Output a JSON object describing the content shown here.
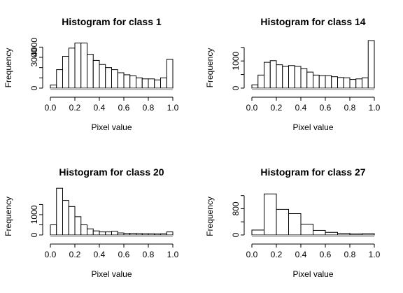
{
  "chart_data": [
    {
      "type": "bar",
      "title": "Histogram for class 1",
      "xlabel": "Pixel value",
      "ylabel": "Frequency",
      "xlim": [
        0,
        1
      ],
      "ylim": [
        0,
        4500
      ],
      "xticks": [
        "0.0",
        "0.2",
        "0.4",
        "0.6",
        "0.8",
        "1.0"
      ],
      "yticks": [
        "0",
        "1000",
        "2000",
        "3000",
        "4000"
      ],
      "ytick_labels_shown": [
        "0",
        "3000",
        "4000"
      ],
      "bin_width": 0.05,
      "values": [
        300,
        1800,
        3100,
        3900,
        4400,
        4400,
        3300,
        2700,
        2300,
        2000,
        1800,
        1500,
        1300,
        1200,
        1000,
        900,
        900,
        800,
        1000,
        2800
      ]
    },
    {
      "type": "bar",
      "title": "Histogram for class 14",
      "xlabel": "Pixel value",
      "ylabel": "Frequency",
      "xlim": [
        0,
        1
      ],
      "ylim": [
        0,
        1700
      ],
      "xticks": [
        "0.0",
        "0.2",
        "0.4",
        "0.6",
        "0.8",
        "1.0"
      ],
      "yticks": [
        "0",
        "500",
        "1000",
        "1500"
      ],
      "ytick_labels_shown": [
        "0",
        "1000"
      ],
      "bin_width": 0.05,
      "values": [
        120,
        480,
        950,
        1010,
        860,
        800,
        830,
        800,
        720,
        590,
        480,
        460,
        460,
        420,
        390,
        380,
        320,
        340,
        380,
        1750
      ]
    },
    {
      "type": "bar",
      "title": "Histogram for class 20",
      "xlabel": "Pixel value",
      "ylabel": "Frequency",
      "xlim": [
        0,
        1
      ],
      "ylim": [
        0,
        2100
      ],
      "xticks": [
        "0.0",
        "0.2",
        "0.4",
        "0.6",
        "0.8",
        "1.0"
      ],
      "yticks": [
        "0",
        "500",
        "1000",
        "1500"
      ],
      "ytick_labels_shown": [
        "0",
        "1000"
      ],
      "bin_width": 0.05,
      "values": [
        500,
        2300,
        1700,
        1400,
        900,
        500,
        300,
        200,
        150,
        150,
        180,
        100,
        80,
        80,
        70,
        60,
        60,
        50,
        60,
        150
      ]
    },
    {
      "type": "bar",
      "title": "Histogram for class 27",
      "xlabel": "Pixel value",
      "ylabel": "Frequency",
      "xlim": [
        0,
        1
      ],
      "ylim": [
        0,
        1300
      ],
      "xticks": [
        "0.0",
        "0.2",
        "0.4",
        "0.6",
        "0.8",
        "1.0"
      ],
      "yticks": [
        "0",
        "400",
        "800",
        "1200"
      ],
      "ytick_labels_shown": [
        "0",
        "800"
      ],
      "bin_width": 0.1,
      "values": [
        150,
        1250,
        780,
        650,
        330,
        140,
        80,
        50,
        30,
        40
      ]
    }
  ]
}
